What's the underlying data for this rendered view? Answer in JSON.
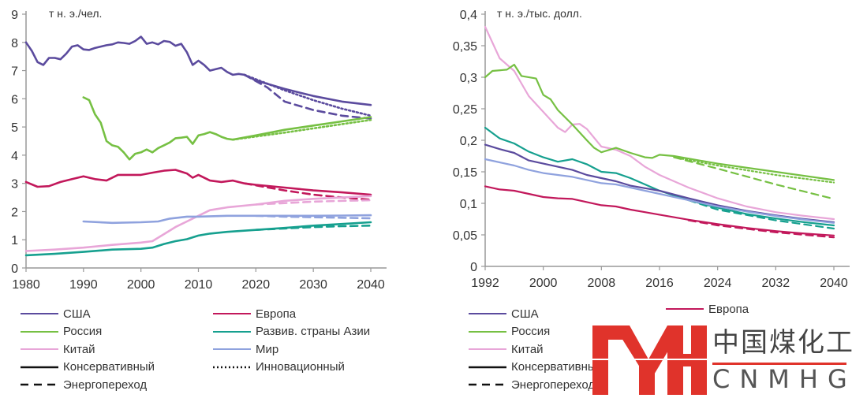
{
  "colors": {
    "usa": "#5b4b9e",
    "europe": "#c2185b",
    "russia": "#76c043",
    "asia": "#16a08f",
    "china": "#e8a6d8",
    "world": "#8fa2de",
    "axis": "#999999",
    "logo_red": "#e0332b"
  },
  "legend_left": [
    {
      "label": "США",
      "key": "usa",
      "style": "solid"
    },
    {
      "label": "Европа",
      "key": "europe",
      "style": "solid"
    },
    {
      "label": "Россия",
      "key": "russia",
      "style": "solid"
    },
    {
      "label": "Развив. страны Азии",
      "key": "asia",
      "style": "solid"
    },
    {
      "label": "Китай",
      "key": "china",
      "style": "solid"
    },
    {
      "label": "Мир",
      "key": "world",
      "style": "solid"
    },
    {
      "label": "Консервативный",
      "key": "black",
      "style": "solid"
    },
    {
      "label": "Инновационный",
      "key": "black",
      "style": "dotted"
    },
    {
      "label": "Энергопереход",
      "key": "black",
      "style": "dashed"
    }
  ],
  "legend_right": [
    {
      "label": "США",
      "key": "usa",
      "style": "solid"
    },
    {
      "label": "Европа",
      "key": "europe",
      "style": "solid"
    },
    {
      "label": "Россия",
      "key": "russia",
      "style": "solid"
    },
    {
      "label": "Китай",
      "key": "china",
      "style": "solid"
    },
    {
      "label": "Консервативный",
      "key": "black",
      "style": "solid"
    },
    {
      "label": "Энергопереход",
      "key": "black",
      "style": "dashed"
    }
  ],
  "logo": {
    "chinese": "中国煤化工",
    "latin": "CNMHG"
  },
  "chart_data": [
    {
      "type": "line",
      "title": "",
      "unit_label": "т н. э./чел.",
      "xlabel": "",
      "ylabel": "т н. э./чел.",
      "xlim": [
        1980,
        2040
      ],
      "ylim": [
        0,
        9
      ],
      "xticks": [
        1980,
        1990,
        2000,
        2010,
        2020,
        2030,
        2040
      ],
      "xtick_labels": [
        "1980",
        "1990",
        "2000",
        "2010",
        "2020",
        "2030",
        "2040"
      ],
      "yticks": [
        0,
        1,
        2,
        3,
        4,
        5,
        6,
        7,
        8,
        9
      ],
      "ytick_labels": [
        "0",
        "1",
        "2",
        "3",
        "4",
        "5",
        "6",
        "7",
        "8",
        "9"
      ],
      "grid": false,
      "series": [
        {
          "name": "США",
          "key": "usa",
          "style": "solid",
          "x": [
            1980,
            1981,
            1982,
            1983,
            1984,
            1985,
            1986,
            1987,
            1988,
            1989,
            1990,
            1991,
            1992,
            1993,
            1994,
            1995,
            1996,
            1997,
            1998,
            1999,
            2000,
            2001,
            2002,
            2003,
            2004,
            2005,
            2006,
            2007,
            2008,
            2009,
            2010,
            2011,
            2012,
            2013,
            2014,
            2015,
            2016,
            2017,
            2018,
            2019,
            2020,
            2025,
            2030,
            2035,
            2040
          ],
          "y": [
            8.0,
            7.7,
            7.3,
            7.2,
            7.45,
            7.45,
            7.4,
            7.6,
            7.85,
            7.9,
            7.75,
            7.73,
            7.8,
            7.85,
            7.9,
            7.93,
            8.0,
            7.98,
            7.95,
            8.05,
            8.2,
            7.95,
            8.0,
            7.93,
            8.05,
            8.02,
            7.88,
            7.95,
            7.65,
            7.2,
            7.35,
            7.2,
            7.0,
            7.05,
            7.1,
            6.95,
            6.85,
            6.88,
            6.85,
            6.75,
            6.65,
            6.35,
            6.1,
            5.9,
            5.78
          ]
        },
        {
          "name": "США (Инновационный)",
          "key": "usa",
          "style": "dotted",
          "x": [
            2018,
            2025,
            2030,
            2035,
            2040
          ],
          "y": [
            6.85,
            6.3,
            5.95,
            5.65,
            5.4
          ]
        },
        {
          "name": "США (Энергопереход)",
          "key": "usa",
          "style": "dashed",
          "x": [
            2018,
            2022,
            2025,
            2030,
            2035,
            2040
          ],
          "y": [
            6.85,
            6.4,
            5.9,
            5.6,
            5.4,
            5.3
          ]
        },
        {
          "name": "Россия",
          "key": "russia",
          "style": "solid",
          "x": [
            1990,
            1991,
            1992,
            1993,
            1994,
            1995,
            1996,
            1997,
            1998,
            1999,
            2000,
            2001,
            2002,
            2003,
            2004,
            2005,
            2006,
            2007,
            2008,
            2009,
            2010,
            2011,
            2012,
            2013,
            2014,
            2015,
            2016,
            2020,
            2025,
            2030,
            2035,
            2040
          ],
          "y": [
            6.05,
            5.95,
            5.45,
            5.15,
            4.5,
            4.35,
            4.3,
            4.1,
            3.85,
            4.05,
            4.1,
            4.2,
            4.1,
            4.25,
            4.35,
            4.45,
            4.6,
            4.62,
            4.65,
            4.4,
            4.7,
            4.75,
            4.82,
            4.75,
            4.65,
            4.58,
            4.55,
            4.7,
            4.9,
            5.05,
            5.2,
            5.35
          ]
        },
        {
          "name": "Россия (Инновационный)",
          "key": "russia",
          "style": "dotted",
          "x": [
            2016,
            2025,
            2030,
            2035,
            2040
          ],
          "y": [
            4.55,
            4.8,
            4.95,
            5.1,
            5.25
          ]
        },
        {
          "name": "Европа",
          "key": "europe",
          "style": "solid",
          "x": [
            1980,
            1982,
            1984,
            1986,
            1988,
            1990,
            1992,
            1994,
            1996,
            1998,
            2000,
            2002,
            2004,
            2006,
            2008,
            2009,
            2010,
            2012,
            2014,
            2016,
            2018,
            2020,
            2025,
            2030,
            2035,
            2040
          ],
          "y": [
            3.05,
            2.88,
            2.9,
            3.05,
            3.15,
            3.25,
            3.15,
            3.1,
            3.3,
            3.3,
            3.3,
            3.38,
            3.45,
            3.48,
            3.35,
            3.2,
            3.3,
            3.1,
            3.05,
            3.1,
            3.0,
            2.95,
            2.85,
            2.75,
            2.68,
            2.6
          ]
        },
        {
          "name": "Европа (Энергопереход)",
          "key": "europe",
          "style": "dashed",
          "x": [
            2018,
            2025,
            2030,
            2035,
            2040
          ],
          "y": [
            3.0,
            2.75,
            2.6,
            2.5,
            2.42
          ]
        },
        {
          "name": "Китай",
          "key": "china",
          "style": "solid",
          "x": [
            1980,
            1985,
            1990,
            1995,
            2000,
            2002,
            2004,
            2006,
            2008,
            2010,
            2012,
            2015,
            2020,
            2025,
            2030,
            2035,
            2040
          ],
          "y": [
            0.6,
            0.65,
            0.72,
            0.82,
            0.9,
            0.95,
            1.2,
            1.45,
            1.65,
            1.85,
            2.05,
            2.15,
            2.25,
            2.38,
            2.45,
            2.5,
            2.55
          ]
        },
        {
          "name": "Китай (Энергопереход)",
          "key": "china",
          "style": "dashed",
          "x": [
            2020,
            2025,
            2030,
            2035,
            2040
          ],
          "y": [
            2.25,
            2.3,
            2.35,
            2.38,
            2.4
          ]
        },
        {
          "name": "Мир",
          "key": "world",
          "style": "solid",
          "x": [
            1990,
            1995,
            2000,
            2003,
            2005,
            2008,
            2010,
            2015,
            2020,
            2025,
            2030,
            2035,
            2040
          ],
          "y": [
            1.65,
            1.6,
            1.62,
            1.65,
            1.75,
            1.82,
            1.82,
            1.85,
            1.85,
            1.85,
            1.85,
            1.86,
            1.87
          ]
        },
        {
          "name": "Мир (Энергопереход)",
          "key": "world",
          "style": "dashed",
          "x": [
            2020,
            2025,
            2030,
            2035,
            2040
          ],
          "y": [
            1.85,
            1.82,
            1.8,
            1.78,
            1.76
          ]
        },
        {
          "name": "Развив. страны Азии",
          "key": "asia",
          "style": "solid",
          "x": [
            1980,
            1985,
            1990,
            1995,
            2000,
            2002,
            2004,
            2006,
            2008,
            2010,
            2012,
            2015,
            2020,
            2025,
            2030,
            2035,
            2040
          ],
          "y": [
            0.45,
            0.5,
            0.57,
            0.65,
            0.68,
            0.72,
            0.85,
            0.95,
            1.02,
            1.15,
            1.22,
            1.28,
            1.35,
            1.42,
            1.5,
            1.56,
            1.62
          ]
        },
        {
          "name": "Развив. страны Азии (Энергопереход)",
          "key": "asia",
          "style": "dashed",
          "x": [
            2020,
            2025,
            2030,
            2035,
            2040
          ],
          "y": [
            1.35,
            1.4,
            1.45,
            1.48,
            1.5
          ]
        }
      ]
    },
    {
      "type": "line",
      "title": "",
      "unit_label": "т н. э./тыс. долл.",
      "xlabel": "",
      "ylabel": "т н. э./тыс. долл.",
      "xlim": [
        1992,
        2040
      ],
      "ylim": [
        0,
        0.4
      ],
      "xticks": [
        1992,
        2000,
        2008,
        2016,
        2024,
        2032,
        2040
      ],
      "xtick_labels": [
        "1992",
        "2000",
        "2008",
        "2016",
        "2024",
        "2032",
        "2040"
      ],
      "yticks": [
        0,
        0.05,
        0.1,
        0.15,
        0.2,
        0.25,
        0.3,
        0.35,
        0.4
      ],
      "ytick_labels": [
        "0",
        "0,05",
        "0,1",
        "0,15",
        "0,2",
        "0,25",
        "0,3",
        "0,35",
        "0,4"
      ],
      "grid": false,
      "series": [
        {
          "name": "Китай",
          "key": "china",
          "style": "solid",
          "x": [
            1992,
            1994,
            1996,
            1998,
            2000,
            2002,
            2003,
            2004,
            2005,
            2006,
            2008,
            2010,
            2012,
            2014,
            2016,
            2020,
            2024,
            2028,
            2032,
            2036,
            2040
          ],
          "y": [
            0.38,
            0.33,
            0.31,
            0.27,
            0.245,
            0.22,
            0.213,
            0.225,
            0.226,
            0.218,
            0.19,
            0.185,
            0.175,
            0.158,
            0.145,
            0.125,
            0.108,
            0.095,
            0.086,
            0.08,
            0.075
          ]
        },
        {
          "name": "Россия",
          "key": "russia",
          "style": "solid",
          "x": [
            1992,
            1993,
            1995,
            1996,
            1997,
            1999,
            2000,
            2001,
            2002,
            2004,
            2006,
            2007,
            2008,
            2010,
            2012,
            2014,
            2015,
            2016,
            2018,
            2024,
            2032,
            2040
          ],
          "y": [
            0.3,
            0.31,
            0.312,
            0.32,
            0.302,
            0.298,
            0.272,
            0.265,
            0.248,
            0.225,
            0.2,
            0.188,
            0.181,
            0.188,
            0.18,
            0.173,
            0.172,
            0.177,
            0.175,
            0.163,
            0.15,
            0.137
          ]
        },
        {
          "name": "Россия (Инновационный)",
          "key": "russia",
          "style": "dotted",
          "x": [
            2018,
            2024,
            2032,
            2040
          ],
          "y": [
            0.173,
            0.16,
            0.145,
            0.133
          ]
        },
        {
          "name": "Россия (Энергопереход)",
          "key": "russia",
          "style": "dashed",
          "x": [
            2018,
            2024,
            2032,
            2040
          ],
          "y": [
            0.173,
            0.155,
            0.13,
            0.107
          ]
        },
        {
          "name": "Развив. страны Азии",
          "key": "asia",
          "style": "solid",
          "x": [
            1992,
            1994,
            1996,
            1998,
            2000,
            2002,
            2004,
            2006,
            2008,
            2010,
            2012,
            2014,
            2016,
            2020,
            2024,
            2028,
            2032,
            2036,
            2040
          ],
          "y": [
            0.22,
            0.203,
            0.195,
            0.182,
            0.173,
            0.166,
            0.17,
            0.162,
            0.15,
            0.148,
            0.14,
            0.13,
            0.12,
            0.105,
            0.093,
            0.083,
            0.076,
            0.07,
            0.065
          ]
        },
        {
          "name": "Развив. страны Азии (Энергопереход)",
          "key": "asia",
          "style": "dashed",
          "x": [
            2020,
            2024,
            2032,
            2040
          ],
          "y": [
            0.105,
            0.09,
            0.073,
            0.06
          ]
        },
        {
          "name": "США",
          "key": "usa",
          "style": "solid",
          "x": [
            1992,
            1994,
            1996,
            1998,
            2000,
            2002,
            2004,
            2006,
            2008,
            2010,
            2012,
            2014,
            2016,
            2020,
            2024,
            2028,
            2032,
            2036,
            2040
          ],
          "y": [
            0.193,
            0.186,
            0.18,
            0.168,
            0.163,
            0.158,
            0.153,
            0.145,
            0.14,
            0.135,
            0.128,
            0.124,
            0.12,
            0.108,
            0.097,
            0.088,
            0.081,
            0.075,
            0.07
          ]
        },
        {
          "name": "Мир",
          "key": "world",
          "style": "solid",
          "x": [
            1992,
            1994,
            1996,
            1998,
            2000,
            2002,
            2004,
            2006,
            2008,
            2010,
            2012,
            2014,
            2016,
            2020,
            2024,
            2028,
            2032,
            2036,
            2040
          ],
          "y": [
            0.17,
            0.165,
            0.16,
            0.153,
            0.148,
            0.145,
            0.142,
            0.137,
            0.132,
            0.13,
            0.125,
            0.12,
            0.115,
            0.105,
            0.095,
            0.087,
            0.08,
            0.074,
            0.069
          ]
        },
        {
          "name": "Европа",
          "key": "europe",
          "style": "solid",
          "x": [
            1992,
            1994,
            1996,
            1998,
            2000,
            2002,
            2004,
            2006,
            2008,
            2010,
            2012,
            2014,
            2016,
            2020,
            2024,
            2028,
            2032,
            2036,
            2040
          ],
          "y": [
            0.127,
            0.122,
            0.12,
            0.115,
            0.11,
            0.108,
            0.107,
            0.102,
            0.097,
            0.095,
            0.09,
            0.086,
            0.082,
            0.074,
            0.067,
            0.061,
            0.056,
            0.052,
            0.049
          ]
        },
        {
          "name": "Европа (Энергопереход)",
          "key": "europe",
          "style": "dashed",
          "x": [
            2020,
            2024,
            2032,
            2040
          ],
          "y": [
            0.073,
            0.065,
            0.054,
            0.046
          ]
        }
      ]
    }
  ]
}
